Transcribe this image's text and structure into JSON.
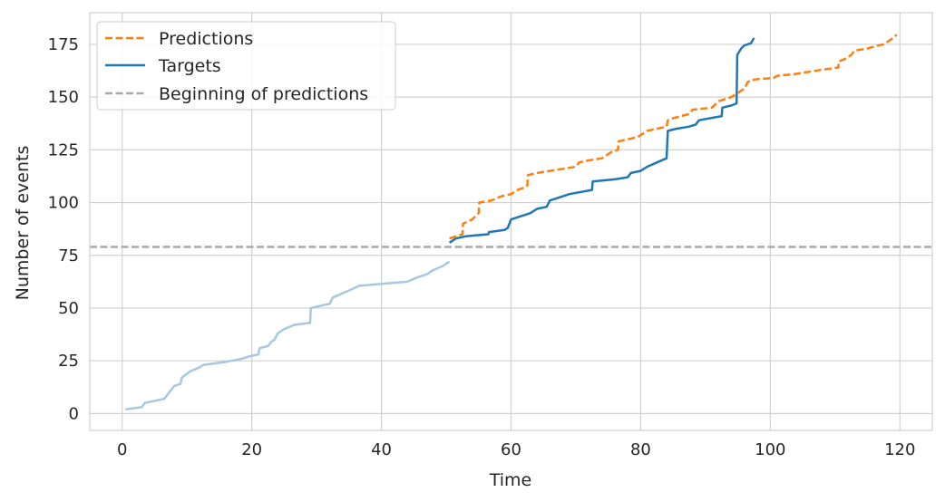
{
  "chart_data": {
    "type": "line",
    "title": "",
    "xlabel": "Time",
    "ylabel": "Number of events",
    "xlim": [
      -5,
      125
    ],
    "ylim": [
      -8,
      190
    ],
    "xticks": [
      0,
      20,
      40,
      60,
      80,
      100,
      120
    ],
    "yticks": [
      0,
      25,
      50,
      75,
      100,
      125,
      150,
      175
    ],
    "xtick_labels": [
      "0",
      "20",
      "40",
      "60",
      "80",
      "100",
      "120"
    ],
    "ytick_labels": [
      "0",
      "25",
      "50",
      "75",
      "100",
      "125",
      "150",
      "175"
    ],
    "grid": true,
    "legend_position": "top-left",
    "legend": [
      "Predictions",
      "Targets",
      "Beginning of predictions"
    ],
    "colors": {
      "predictions": "#ff7f0e",
      "targets": "#1f77b4",
      "history": "#a6c8e0",
      "reference": "#a9a9a9",
      "grid": "#d0d0d0"
    },
    "series": [
      {
        "name": "History",
        "style": "solid",
        "points": [
          [
            0.5,
            2
          ],
          [
            3,
            3
          ],
          [
            3.5,
            5
          ],
          [
            6.5,
            7
          ],
          [
            7,
            9
          ],
          [
            7.5,
            11
          ],
          [
            8,
            13
          ],
          [
            9,
            14
          ],
          [
            9.2,
            17
          ],
          [
            10.5,
            20
          ],
          [
            12,
            22
          ],
          [
            12.5,
            23
          ],
          [
            16,
            24.5
          ],
          [
            18.5,
            26
          ],
          [
            19.5,
            27
          ],
          [
            21,
            28
          ],
          [
            21.2,
            31
          ],
          [
            22.5,
            32
          ],
          [
            23,
            34
          ],
          [
            23.5,
            35
          ],
          [
            24,
            38
          ],
          [
            25,
            40
          ],
          [
            26.5,
            42
          ],
          [
            29,
            43
          ],
          [
            29.1,
            50
          ],
          [
            30.5,
            51
          ],
          [
            32,
            52
          ],
          [
            32.5,
            55
          ],
          [
            34,
            57
          ],
          [
            35.5,
            59
          ],
          [
            36.5,
            60.5
          ],
          [
            40,
            61.5
          ],
          [
            44,
            62.5
          ],
          [
            45.5,
            64.5
          ],
          [
            47,
            66
          ],
          [
            48,
            68
          ],
          [
            49.5,
            70
          ],
          [
            50.5,
            72
          ]
        ]
      },
      {
        "name": "Targets",
        "style": "solid",
        "points": [
          [
            50.5,
            81
          ],
          [
            51.5,
            83
          ],
          [
            53,
            84
          ],
          [
            56.5,
            85
          ],
          [
            56.6,
            86
          ],
          [
            59,
            87
          ],
          [
            59.5,
            88
          ],
          [
            60,
            92
          ],
          [
            61,
            93
          ],
          [
            63,
            95
          ],
          [
            64,
            97
          ],
          [
            65.5,
            98
          ],
          [
            66,
            101
          ],
          [
            67,
            102
          ],
          [
            68,
            103
          ],
          [
            69,
            104
          ],
          [
            72.5,
            106
          ],
          [
            72.6,
            110
          ],
          [
            76,
            111
          ],
          [
            78,
            112
          ],
          [
            78.5,
            114
          ],
          [
            80,
            115
          ],
          [
            81,
            117
          ],
          [
            82.5,
            119
          ],
          [
            84,
            121
          ],
          [
            84.2,
            134
          ],
          [
            85.5,
            135
          ],
          [
            87.5,
            136
          ],
          [
            88.5,
            137
          ],
          [
            89,
            139
          ],
          [
            92.5,
            141
          ],
          [
            92.6,
            145
          ],
          [
            94,
            146
          ],
          [
            94.8,
            147
          ],
          [
            94.9,
            170
          ],
          [
            95.5,
            173
          ],
          [
            96,
            174.5
          ],
          [
            97,
            175.5
          ],
          [
            97.5,
            178
          ]
        ]
      },
      {
        "name": "Predictions",
        "style": "dashed",
        "points": [
          [
            50.5,
            83
          ],
          [
            51.5,
            84
          ],
          [
            52.5,
            85
          ],
          [
            52.6,
            90
          ],
          [
            54,
            92
          ],
          [
            55,
            95
          ],
          [
            55.1,
            100
          ],
          [
            57,
            101
          ],
          [
            58.5,
            103
          ],
          [
            60,
            104
          ],
          [
            61,
            106
          ],
          [
            62,
            107
          ],
          [
            62.5,
            108
          ],
          [
            62.6,
            113
          ],
          [
            64,
            114
          ],
          [
            66,
            115
          ],
          [
            68,
            116
          ],
          [
            70,
            117
          ],
          [
            70.5,
            119
          ],
          [
            72,
            120
          ],
          [
            74,
            121
          ],
          [
            75.5,
            124
          ],
          [
            76.5,
            125
          ],
          [
            76.6,
            129
          ],
          [
            78,
            130
          ],
          [
            79.5,
            131
          ],
          [
            80.5,
            133
          ],
          [
            81,
            134
          ],
          [
            84,
            136
          ],
          [
            84.2,
            139
          ],
          [
            85,
            140
          ],
          [
            87.5,
            142
          ],
          [
            88,
            144
          ],
          [
            91,
            145
          ],
          [
            92,
            148
          ],
          [
            94,
            150
          ],
          [
            95,
            152
          ],
          [
            96,
            154
          ],
          [
            96.5,
            157
          ],
          [
            97,
            158
          ],
          [
            98,
            158.5
          ],
          [
            100.5,
            159
          ],
          [
            101,
            160
          ],
          [
            104,
            161
          ],
          [
            106,
            162
          ],
          [
            108,
            163
          ],
          [
            110.5,
            164
          ],
          [
            110.6,
            167
          ],
          [
            111.5,
            168
          ],
          [
            112.5,
            170
          ],
          [
            113,
            172
          ],
          [
            115,
            173
          ],
          [
            116,
            174
          ],
          [
            117.5,
            175
          ],
          [
            118.5,
            177
          ],
          [
            119.5,
            179.5
          ]
        ]
      },
      {
        "name": "Beginning of predictions",
        "style": "dashed",
        "y": 79
      }
    ]
  }
}
